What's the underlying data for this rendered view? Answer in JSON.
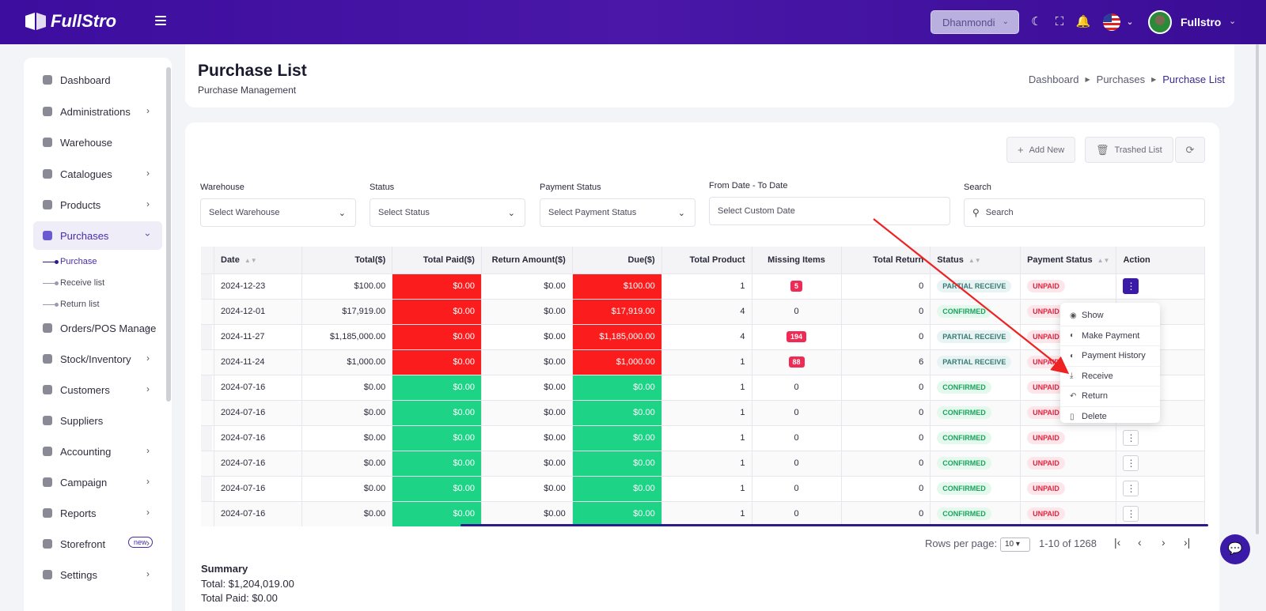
{
  "header": {
    "brand": "FullStro",
    "branch": "Dhanmondi",
    "username": "Fullstro"
  },
  "sidebar": {
    "items": [
      {
        "label": "Dashboard",
        "icon": "monitor-icon"
      },
      {
        "label": "Administrations",
        "icon": "user-icon"
      },
      {
        "label": "Warehouse",
        "icon": "warehouse-icon"
      },
      {
        "label": "Catalogues",
        "icon": "catalogue-icon"
      },
      {
        "label": "Products",
        "icon": "product-icon"
      },
      {
        "label": "Purchases",
        "icon": "purchase-icon"
      },
      {
        "label": "Orders/POS Manage",
        "icon": "orders-icon"
      },
      {
        "label": "Stock/Inventory",
        "icon": "stock-icon"
      },
      {
        "label": "Customers",
        "icon": "customers-icon"
      },
      {
        "label": "Suppliers",
        "icon": "suppliers-icon"
      },
      {
        "label": "Accounting",
        "icon": "accounting-icon"
      },
      {
        "label": "Campaign",
        "icon": "campaign-icon"
      },
      {
        "label": "Reports",
        "icon": "reports-icon"
      },
      {
        "label": "Storefront",
        "icon": "storefront-icon",
        "badge": "new"
      },
      {
        "label": "Settings",
        "icon": "settings-icon"
      }
    ],
    "purchase_sub": [
      "Purchase",
      "Receive list",
      "Return list"
    ]
  },
  "page": {
    "title": "Purchase List",
    "subtitle": "Purchase Management",
    "breadcrumb": [
      "Dashboard",
      "Purchases",
      "Purchase List"
    ]
  },
  "toolbar": {
    "add_new": "Add New",
    "trashed": "Trashed List"
  },
  "filters": {
    "warehouse_label": "Warehouse",
    "warehouse_placeholder": "Select Warehouse",
    "status_label": "Status",
    "status_placeholder": "Select Status",
    "payment_label": "Payment Status",
    "payment_placeholder": "Select Payment Status",
    "date_label": "From Date - To Date",
    "date_placeholder": "Select Custom Date",
    "search_label": "Search",
    "search_placeholder": "Search"
  },
  "table": {
    "headers": [
      "Date",
      "Total($)",
      "Total Paid($)",
      "Return Amount($)",
      "Due($)",
      "Total Product",
      "Missing Items",
      "Total Return",
      "Status",
      "Payment Status",
      "Action"
    ],
    "rows": [
      {
        "date": "2024-12-23",
        "total": "$100.00",
        "paid": "$0.00",
        "ret": "$0.00",
        "due": "$100.00",
        "products": "1",
        "missing": "5",
        "treturn": "0",
        "status": "PARTIAL RECEIVE",
        "payment": "UNPAID",
        "paid_color": "red",
        "due_color": "red",
        "missing_badge": true,
        "status_kind": "partial"
      },
      {
        "date": "2024-12-01",
        "total": "$17,919.00",
        "paid": "$0.00",
        "ret": "$0.00",
        "due": "$17,919.00",
        "products": "4",
        "missing": "0",
        "treturn": "0",
        "status": "CONFIRMED",
        "payment": "UNPAID",
        "paid_color": "red",
        "due_color": "red",
        "missing_badge": false,
        "status_kind": "confirmed"
      },
      {
        "date": "2024-11-27",
        "total": "$1,185,000.00",
        "paid": "$0.00",
        "ret": "$0.00",
        "due": "$1,185,000.00",
        "products": "4",
        "missing": "194",
        "treturn": "0",
        "status": "PARTIAL RECEIVE",
        "payment": "UNPAID",
        "paid_color": "red",
        "due_color": "red",
        "missing_badge": true,
        "status_kind": "partial"
      },
      {
        "date": "2024-11-24",
        "total": "$1,000.00",
        "paid": "$0.00",
        "ret": "$0.00",
        "due": "$1,000.00",
        "products": "1",
        "missing": "88",
        "treturn": "6",
        "status": "PARTIAL RECEIVE",
        "payment": "UNPAID",
        "paid_color": "red",
        "due_color": "red",
        "missing_badge": true,
        "status_kind": "partial"
      },
      {
        "date": "2024-07-16",
        "total": "$0.00",
        "paid": "$0.00",
        "ret": "$0.00",
        "due": "$0.00",
        "products": "1",
        "missing": "0",
        "treturn": "0",
        "status": "CONFIRMED",
        "payment": "UNPAID",
        "paid_color": "green",
        "due_color": "green",
        "missing_badge": false,
        "status_kind": "confirmed"
      },
      {
        "date": "2024-07-16",
        "total": "$0.00",
        "paid": "$0.00",
        "ret": "$0.00",
        "due": "$0.00",
        "products": "1",
        "missing": "0",
        "treturn": "0",
        "status": "CONFIRMED",
        "payment": "UNPAID",
        "paid_color": "green",
        "due_color": "green",
        "missing_badge": false,
        "status_kind": "confirmed"
      },
      {
        "date": "2024-07-16",
        "total": "$0.00",
        "paid": "$0.00",
        "ret": "$0.00",
        "due": "$0.00",
        "products": "1",
        "missing": "0",
        "treturn": "0",
        "status": "CONFIRMED",
        "payment": "UNPAID",
        "paid_color": "green",
        "due_color": "green",
        "missing_badge": false,
        "status_kind": "confirmed"
      },
      {
        "date": "2024-07-16",
        "total": "$0.00",
        "paid": "$0.00",
        "ret": "$0.00",
        "due": "$0.00",
        "products": "1",
        "missing": "0",
        "treturn": "0",
        "status": "CONFIRMED",
        "payment": "UNPAID",
        "paid_color": "green",
        "due_color": "green",
        "missing_badge": false,
        "status_kind": "confirmed"
      },
      {
        "date": "2024-07-16",
        "total": "$0.00",
        "paid": "$0.00",
        "ret": "$0.00",
        "due": "$0.00",
        "products": "1",
        "missing": "0",
        "treturn": "0",
        "status": "CONFIRMED",
        "payment": "UNPAID",
        "paid_color": "green",
        "due_color": "green",
        "missing_badge": false,
        "status_kind": "confirmed"
      },
      {
        "date": "2024-07-16",
        "total": "$0.00",
        "paid": "$0.00",
        "ret": "$0.00",
        "due": "$0.00",
        "products": "1",
        "missing": "0",
        "treturn": "0",
        "status": "CONFIRMED",
        "payment": "UNPAID",
        "paid_color": "green",
        "due_color": "green",
        "missing_badge": false,
        "status_kind": "confirmed"
      }
    ]
  },
  "action_menu": [
    {
      "label": "Show",
      "icon": "eye-icon"
    },
    {
      "label": "Make Payment",
      "icon": "payment-icon"
    },
    {
      "label": "Payment History",
      "icon": "history-icon"
    },
    {
      "label": "Receive",
      "icon": "download-icon"
    },
    {
      "label": "Return",
      "icon": "undo-icon"
    },
    {
      "label": "Delete",
      "icon": "trash-icon"
    }
  ],
  "pagination": {
    "rows_label": "Rows per page:",
    "rows_value": "10",
    "range": "1-10 of 1268"
  },
  "summary": {
    "title": "Summary",
    "total": "Total: $1,204,019.00",
    "total_paid": "Total Paid: $0.00"
  },
  "colors": {
    "brand": "#3c0d9e",
    "due_red": "#fb1d1d",
    "paid_green": "#1dd386",
    "annotation_arrow": "#ee2222"
  }
}
